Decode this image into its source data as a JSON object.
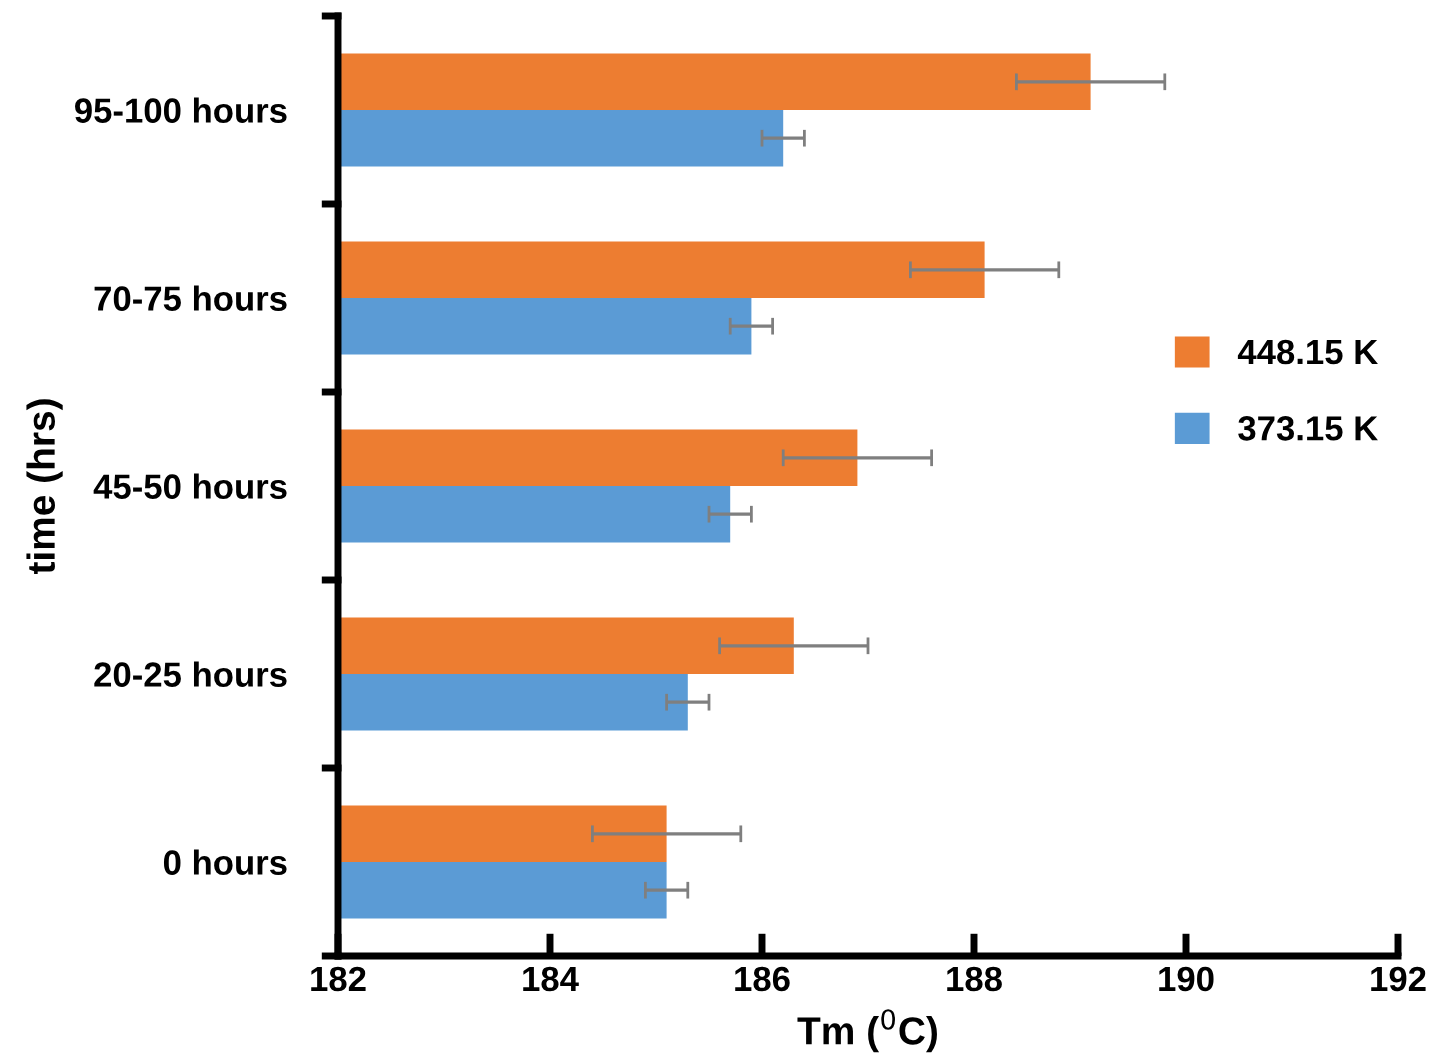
{
  "chart_data": {
    "type": "bar",
    "orientation": "horizontal",
    "xlabel": "Tm ($^{0}$C)",
    "ylabel": "time (hrs)",
    "categories": [
      "95-100 hours",
      "70-75 hours",
      "45-50 hours",
      "20-25 hours",
      "0 hours"
    ],
    "series": [
      {
        "name": "448.15 K",
        "color": "#ed7d31",
        "values": [
          189.1,
          188.1,
          186.9,
          186.3,
          185.1
        ],
        "errors": [
          0.7,
          0.7,
          0.7,
          0.7,
          0.7
        ]
      },
      {
        "name": "373.15 K",
        "color": "#5b9bd5",
        "values": [
          186.2,
          185.9,
          185.7,
          185.3,
          185.1
        ],
        "errors": [
          0.2,
          0.2,
          0.2,
          0.2,
          0.2
        ]
      }
    ],
    "xlim": [
      182,
      192
    ],
    "xticks": [
      182,
      184,
      186,
      188,
      190,
      192
    ],
    "grid": false,
    "legend": "right"
  }
}
